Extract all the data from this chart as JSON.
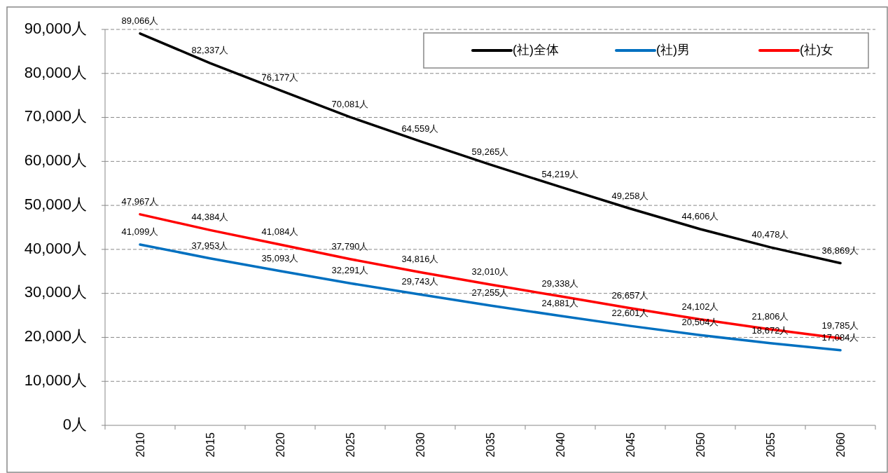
{
  "chart_data": {
    "type": "line",
    "categories": [
      "2010",
      "2015",
      "2020",
      "2025",
      "2030",
      "2035",
      "2040",
      "2045",
      "2050",
      "2055",
      "2060"
    ],
    "series": [
      {
        "name": "(社)全体",
        "color": "#000000",
        "values": [
          89066,
          82337,
          76177,
          70081,
          64559,
          59265,
          54219,
          49258,
          44606,
          40478,
          36869
        ],
        "value_labels": [
          "89,066人",
          "82,337人",
          "76,177人",
          "70,081人",
          "64,559人",
          "59,265人",
          "54,219人",
          "49,258人",
          "44,606人",
          "40,478人",
          "36,869人"
        ]
      },
      {
        "name": "(社)男",
        "color": "#0070c0",
        "values": [
          41099,
          37953,
          35093,
          32291,
          29743,
          27255,
          24881,
          22601,
          20504,
          18672,
          17084
        ],
        "value_labels": [
          "41,099人",
          "37,953人",
          "35,093人",
          "32,291人",
          "29,743人",
          "27,255人",
          "24,881人",
          "22,601人",
          "20,504人",
          "18,672人",
          "17,084人"
        ]
      },
      {
        "name": "(社)女",
        "color": "#ff0000",
        "values": [
          47967,
          44384,
          41084,
          37790,
          34816,
          32010,
          29338,
          26657,
          24102,
          21806,
          19785
        ],
        "value_labels": [
          "47,967人",
          "44,384人",
          "41,084人",
          "37,790人",
          "34,816人",
          "32,010人",
          "29,338人",
          "26,657人",
          "24,102人",
          "21,806人",
          "19,785人"
        ]
      }
    ],
    "ylim": [
      0,
      90000
    ],
    "yticks": [
      {
        "value": 0,
        "label": "0人"
      },
      {
        "value": 10000,
        "label": "10,000人"
      },
      {
        "value": 20000,
        "label": "20,000人"
      },
      {
        "value": 30000,
        "label": "30,000人"
      },
      {
        "value": 40000,
        "label": "40,000人"
      },
      {
        "value": 50000,
        "label": "50,000人"
      },
      {
        "value": 60000,
        "label": "60,000人"
      },
      {
        "value": 70000,
        "label": "70,000人"
      },
      {
        "value": 80000,
        "label": "80,000人"
      },
      {
        "value": 90000,
        "label": "90,000人"
      }
    ],
    "grid": "y",
    "legend": "top right",
    "marker": "none",
    "line_style": "solid"
  }
}
